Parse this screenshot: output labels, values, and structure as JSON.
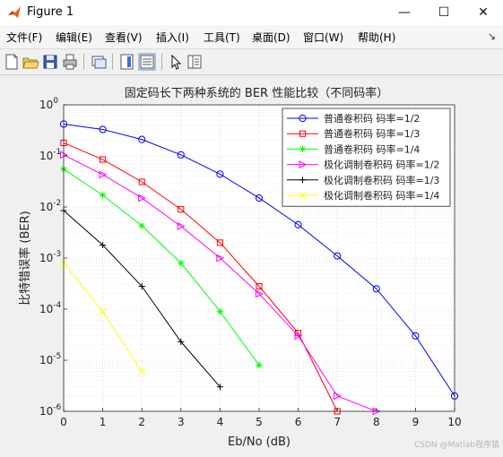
{
  "window": {
    "title": "Figure 1",
    "min_glyph": "—",
    "max_glyph": "☐",
    "close_glyph": "✕"
  },
  "menu": {
    "items": [
      "文件(F)",
      "编辑(E)",
      "查看(V)",
      "插入(I)",
      "工具(T)",
      "桌面(D)",
      "窗口(W)",
      "帮助(H)"
    ],
    "overflow": "↘"
  },
  "toolbar": {
    "icons": [
      "new-figure-icon",
      "open-file-icon",
      "save-icon",
      "print-icon",
      "link-plot-icon",
      "colorbar-icon",
      "legend-icon",
      "pointer-icon",
      "property-editor-icon"
    ]
  },
  "chart_data": {
    "type": "line",
    "title": "固定码长下两种系统的 BER 性能比较（不同码率）",
    "xlabel": "Eb/No (dB)",
    "ylabel": "比特错误率 (BER)",
    "xlim": [
      0,
      10
    ],
    "ylim": [
      1e-06,
      1
    ],
    "yscale": "log",
    "grid": true,
    "xticks": [
      "0",
      "1",
      "2",
      "3",
      "4",
      "5",
      "6",
      "7",
      "8",
      "9",
      "10"
    ],
    "yticks": [
      {
        "base": "10",
        "exp": "0"
      },
      {
        "base": "10",
        "exp": "-1"
      },
      {
        "base": "10",
        "exp": "-2"
      },
      {
        "base": "10",
        "exp": "-3"
      },
      {
        "base": "10",
        "exp": "-4"
      },
      {
        "base": "10",
        "exp": "-5"
      },
      {
        "base": "10",
        "exp": "-6"
      }
    ],
    "legend_position": "top-right",
    "series": [
      {
        "name": "普通卷积码 码率=1/2",
        "color": "#0000ff",
        "marker": "circle",
        "x": [
          0,
          1,
          2,
          3,
          4,
          5,
          6,
          7,
          8,
          9,
          10
        ],
        "y": [
          0.42,
          0.33,
          0.21,
          0.105,
          0.044,
          0.015,
          0.0045,
          0.0011,
          0.00025,
          3e-05,
          2e-06
        ]
      },
      {
        "name": "普通卷积码 码率=1/3",
        "color": "#ff0000",
        "marker": "square",
        "x": [
          0,
          1,
          2,
          3,
          4,
          5,
          6,
          7
        ],
        "y": [
          0.18,
          0.085,
          0.031,
          0.009,
          0.002,
          0.00028,
          3.4e-05,
          1e-06
        ]
      },
      {
        "name": "普通卷积码 码率=1/4",
        "color": "#00ff00",
        "marker": "asterisk",
        "x": [
          0,
          1,
          2,
          3,
          4,
          5
        ],
        "y": [
          0.055,
          0.017,
          0.0043,
          0.0008,
          9e-05,
          8e-06
        ]
      },
      {
        "name": "极化调制卷积码 码率=1/2",
        "color": "#ff00ff",
        "marker": "triangle-right",
        "x": [
          0,
          1,
          2,
          3,
          4,
          5,
          6,
          7,
          8
        ],
        "y": [
          0.105,
          0.043,
          0.015,
          0.0042,
          0.001,
          0.0002,
          3e-05,
          2e-06,
          1e-06
        ]
      },
      {
        "name": "极化调制卷积码 码率=1/3",
        "color": "#000000",
        "marker": "plus",
        "x": [
          0,
          1,
          2,
          3,
          4
        ],
        "y": [
          0.0085,
          0.0018,
          0.00028,
          2.3e-05,
          3e-06
        ]
      },
      {
        "name": "极化调制卷积码 码率=1/4",
        "color": "#ffff00",
        "marker": "x",
        "x": [
          0,
          1,
          2
        ],
        "y": [
          0.0008,
          9e-05,
          6e-06
        ]
      }
    ]
  },
  "watermark": "CSDN @Matlab程序猿"
}
